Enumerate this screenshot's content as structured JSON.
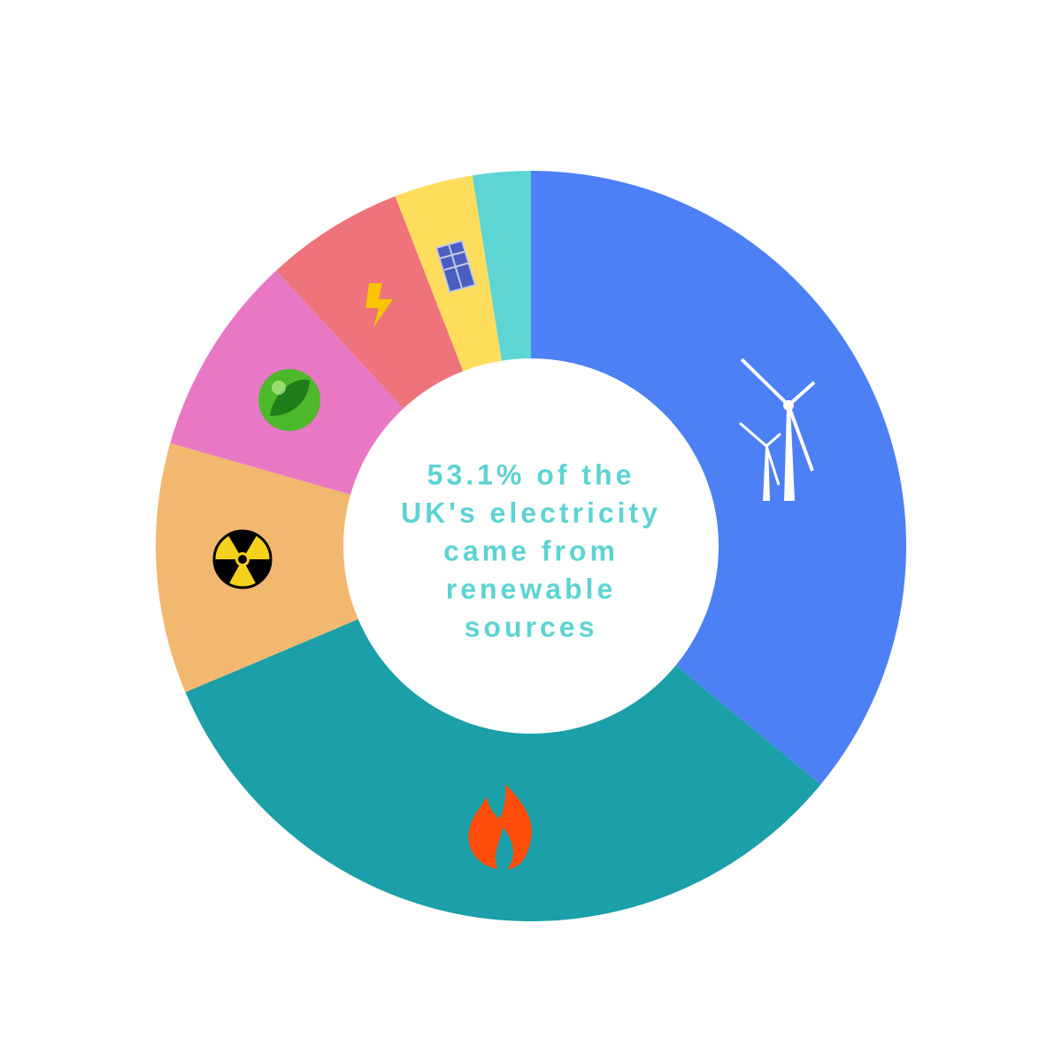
{
  "chart_data": {
    "type": "donut",
    "values": [
      36.0,
      32.7,
      10.8,
      8.7,
      6.0,
      3.4,
      2.5
    ],
    "colors": [
      "#4d7ff5",
      "#1b9fa8",
      "#f2b870",
      "#e878c4",
      "#ee737b",
      "#fedd5c",
      "#5dd5d5"
    ],
    "annotation_lines": [
      "53.1% of the",
      "UK's electricity",
      "came from",
      "renewable",
      "sources"
    ],
    "annotation_color": "#5dd3d3"
  }
}
